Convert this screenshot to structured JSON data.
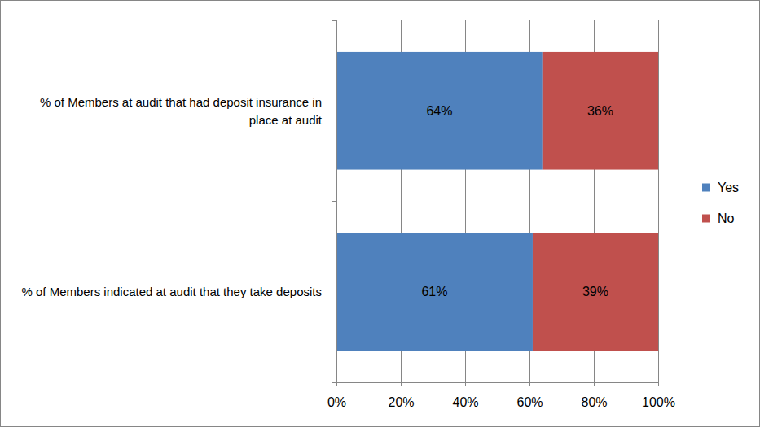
{
  "chart_data": {
    "type": "bar",
    "orientation": "horizontal",
    "stacked": true,
    "data_labels": true,
    "grid": true,
    "legend": "right",
    "categories": [
      "% of Members at audit that had deposit insurance in place at audit",
      "% of Members indicated at audit that they take deposits"
    ],
    "series": [
      {
        "name": "Yes",
        "color": "#4f81bd",
        "values": [
          64,
          61
        ],
        "value_labels": [
          "64%",
          "61%"
        ]
      },
      {
        "name": "No",
        "color": "#c0504d",
        "values": [
          36,
          39
        ],
        "value_labels": [
          "36%",
          "39%"
        ]
      }
    ],
    "xlim": [
      0,
      100
    ],
    "xticks": [
      {
        "value": 0,
        "label": "0%"
      },
      {
        "value": 20,
        "label": "20%"
      },
      {
        "value": 40,
        "label": "40%"
      },
      {
        "value": 60,
        "label": "60%"
      },
      {
        "value": 80,
        "label": "80%"
      },
      {
        "value": 100,
        "label": "100%"
      }
    ]
  }
}
